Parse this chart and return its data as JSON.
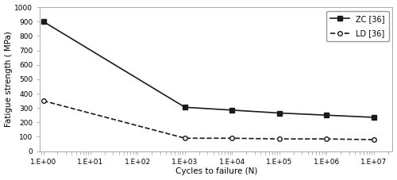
{
  "zc_x": [
    1.0,
    1000.0,
    10000.0,
    100000.0,
    1000000.0,
    10000000.0
  ],
  "zc_y": [
    900,
    305,
    285,
    265,
    250,
    235
  ],
  "ld_x": [
    1.0,
    1000.0,
    10000.0,
    100000.0,
    1000000.0,
    10000000.0
  ],
  "ld_y": [
    350,
    90,
    90,
    85,
    85,
    80
  ],
  "zc_label": "ZC [36]",
  "ld_label": "LD [36]",
  "xlabel": "Cycles to failure (N)",
  "ylabel": "Fatigue strength ( MPa)",
  "ylim": [
    0,
    1000
  ],
  "yticks": [
    0,
    100,
    200,
    300,
    400,
    500,
    600,
    700,
    800,
    900,
    1000
  ],
  "line_color": "#1a1a1a",
  "bg_color": "#ffffff"
}
